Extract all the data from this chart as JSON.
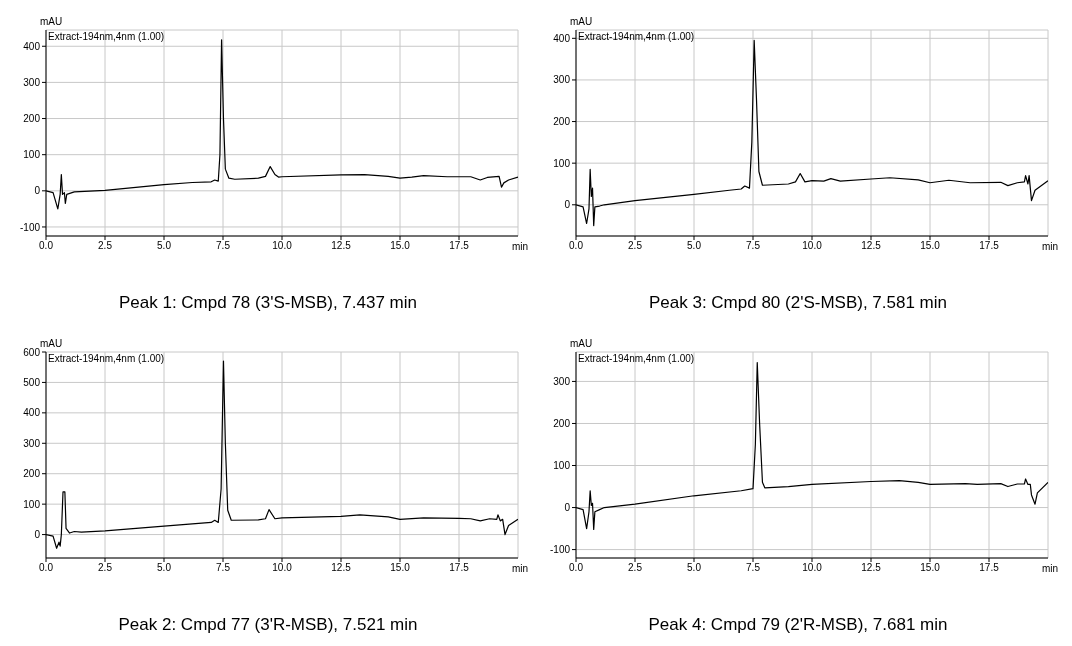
{
  "chart_data": [
    {
      "type": "line",
      "title": "Peak 1: Cmpd 78 (3'S-MSB), 7.437 min",
      "xlabel": "min",
      "ylabel": "mAU",
      "annotations": [
        "Extract-194nm,4nm (1.00)"
      ],
      "color": "#000000",
      "marker": "none",
      "grid": true,
      "xlim": [
        0,
        20
      ],
      "ylim": [
        -125,
        445
      ],
      "xticks": [
        {
          "value": 0,
          "label": "0.0"
        },
        {
          "value": 2.5,
          "label": "2.5"
        },
        {
          "value": 5,
          "label": "5.0"
        },
        {
          "value": 7.5,
          "label": "7.5"
        },
        {
          "value": 10,
          "label": "10.0"
        },
        {
          "value": 12.5,
          "label": "12.5"
        },
        {
          "value": 15,
          "label": "15.0"
        },
        {
          "value": 17.5,
          "label": "17.5"
        }
      ],
      "yticks": [
        -100,
        0,
        100,
        200,
        300,
        400
      ],
      "x": [
        0,
        0.3,
        0.5,
        0.6,
        0.65,
        0.7,
        0.78,
        0.82,
        0.88,
        1.2,
        2.5,
        5.0,
        6.2,
        7.0,
        7.15,
        7.3,
        7.37,
        7.44,
        7.52,
        7.6,
        7.75,
        8.0,
        9.0,
        9.3,
        9.5,
        9.7,
        9.85,
        10.0,
        12.5,
        13.5,
        14.5,
        15.0,
        15.5,
        16.0,
        17.0,
        18.0,
        18.4,
        18.7,
        19.2,
        19.3,
        19.4,
        19.6,
        20
      ],
      "values": [
        0,
        -5,
        -50,
        -10,
        45,
        -10,
        -5,
        -35,
        -10,
        -3,
        1,
        17,
        23,
        25,
        30,
        27,
        100,
        418,
        200,
        60,
        35,
        32,
        35,
        40,
        67,
        45,
        38,
        39,
        44,
        45,
        40,
        35,
        38,
        42,
        39,
        39,
        30,
        37,
        40,
        10,
        22,
        30,
        38
      ]
    },
    {
      "type": "line",
      "title": "Peak 3: Cmpd 80 (2'S-MSB), 7.581 min",
      "xlabel": "min",
      "ylabel": "mAU",
      "annotations": [
        "Extract-194nm,4nm (1.00)"
      ],
      "color": "#000000",
      "marker": "none",
      "grid": true,
      "xlim": [
        0,
        20
      ],
      "ylim": [
        -75,
        420
      ],
      "xticks": [
        {
          "value": 0,
          "label": "0.0"
        },
        {
          "value": 2.5,
          "label": "2.5"
        },
        {
          "value": 5,
          "label": "5.0"
        },
        {
          "value": 7.5,
          "label": "7.5"
        },
        {
          "value": 10,
          "label": "10.0"
        },
        {
          "value": 12.5,
          "label": "12.5"
        },
        {
          "value": 15,
          "label": "15.0"
        },
        {
          "value": 17.5,
          "label": "17.5"
        }
      ],
      "yticks": [
        0,
        100,
        200,
        300,
        400
      ],
      "x": [
        0,
        0.3,
        0.45,
        0.55,
        0.6,
        0.65,
        0.7,
        0.75,
        0.8,
        1.0,
        1.2,
        2.5,
        5.0,
        6.5,
        7.0,
        7.15,
        7.35,
        7.45,
        7.55,
        7.65,
        7.75,
        7.9,
        9.0,
        9.3,
        9.5,
        9.7,
        10.0,
        10.5,
        10.8,
        11.2,
        12.5,
        13.3,
        14.5,
        15.0,
        15.8,
        16.7,
        18.0,
        18.3,
        18.7,
        19.0,
        19.05,
        19.15,
        19.2,
        19.3,
        19.45,
        20
      ],
      "values": [
        0,
        -5,
        -45,
        -10,
        85,
        20,
        40,
        -50,
        -5,
        -3,
        0,
        10,
        25,
        35,
        38,
        45,
        40,
        150,
        395,
        250,
        80,
        47,
        50,
        55,
        75,
        55,
        58,
        57,
        63,
        57,
        62,
        65,
        60,
        53,
        59,
        53,
        54,
        46,
        53,
        55,
        70,
        50,
        70,
        10,
        35,
        58
      ]
    },
    {
      "type": "line",
      "title": "Peak 2: Cmpd 77 (3'R-MSB), 7.521 min",
      "xlabel": "min",
      "ylabel": "mAU",
      "annotations": [
        "Extract-194nm,4nm (1.00)"
      ],
      "color": "#000000",
      "marker": "none",
      "grid": true,
      "xlim": [
        0,
        20
      ],
      "ylim": [
        -77,
        600
      ],
      "xticks": [
        {
          "value": 0,
          "label": "0.0"
        },
        {
          "value": 2.5,
          "label": "2.5"
        },
        {
          "value": 5,
          "label": "5.0"
        },
        {
          "value": 7.5,
          "label": "7.5"
        },
        {
          "value": 10,
          "label": "10.0"
        },
        {
          "value": 12.5,
          "label": "12.5"
        },
        {
          "value": 15,
          "label": "15.0"
        },
        {
          "value": 17.5,
          "label": "17.5"
        }
      ],
      "yticks": [
        0,
        100,
        200,
        300,
        400,
        500,
        600
      ],
      "x": [
        0,
        0.3,
        0.45,
        0.55,
        0.6,
        0.65,
        0.72,
        0.8,
        0.85,
        1.0,
        1.2,
        1.5,
        2.5,
        5.0,
        6.2,
        7.0,
        7.15,
        7.3,
        7.42,
        7.52,
        7.6,
        7.7,
        7.85,
        9.0,
        9.3,
        9.45,
        9.7,
        10.0,
        12.5,
        13.3,
        14.5,
        15.0,
        16.0,
        17.5,
        18.0,
        18.4,
        18.8,
        19.1,
        19.15,
        19.25,
        19.35,
        19.45,
        19.6,
        20
      ],
      "values": [
        0,
        -5,
        -45,
        -25,
        -38,
        0,
        140,
        140,
        20,
        5,
        10,
        8,
        12,
        28,
        35,
        40,
        47,
        40,
        150,
        570,
        300,
        80,
        47,
        48,
        52,
        82,
        52,
        55,
        60,
        65,
        58,
        50,
        55,
        53,
        52,
        45,
        52,
        50,
        65,
        45,
        50,
        0,
        30,
        50
      ]
    },
    {
      "type": "line",
      "title": "Peak 4: Cmpd 79 (2'R-MSB), 7.681 min",
      "xlabel": "min",
      "ylabel": "mAU",
      "annotations": [
        "Extract-194nm,4nm (1.00)"
      ],
      "color": "#000000",
      "marker": "none",
      "grid": true,
      "xlim": [
        0,
        20
      ],
      "ylim": [
        -120,
        370
      ],
      "xticks": [
        {
          "value": 0,
          "label": "0.0"
        },
        {
          "value": 2.5,
          "label": "2.5"
        },
        {
          "value": 5,
          "label": "5.0"
        },
        {
          "value": 7.5,
          "label": "7.5"
        },
        {
          "value": 10,
          "label": "10.0"
        },
        {
          "value": 12.5,
          "label": "12.5"
        },
        {
          "value": 15,
          "label": "15.0"
        },
        {
          "value": 17.5,
          "label": "17.5"
        }
      ],
      "yticks": [
        -100,
        0,
        100,
        200,
        300
      ],
      "x": [
        0,
        0.3,
        0.45,
        0.55,
        0.6,
        0.65,
        0.7,
        0.75,
        0.8,
        1.0,
        1.2,
        2.5,
        5.0,
        7.0,
        7.5,
        7.6,
        7.68,
        7.78,
        7.9,
        8.0,
        9.0,
        10.0,
        12.5,
        13.7,
        14.5,
        15.0,
        16.5,
        17.0,
        18.0,
        18.3,
        18.7,
        19.0,
        19.05,
        19.15,
        19.25,
        19.3,
        19.45,
        19.55,
        20
      ],
      "values": [
        0,
        -5,
        -50,
        -10,
        40,
        5,
        10,
        -52,
        -10,
        -5,
        0,
        8,
        28,
        40,
        45,
        150,
        345,
        200,
        60,
        47,
        50,
        55,
        62,
        64,
        60,
        55,
        57,
        55,
        57,
        50,
        56,
        56,
        68,
        55,
        55,
        30,
        8,
        35,
        60
      ]
    }
  ]
}
